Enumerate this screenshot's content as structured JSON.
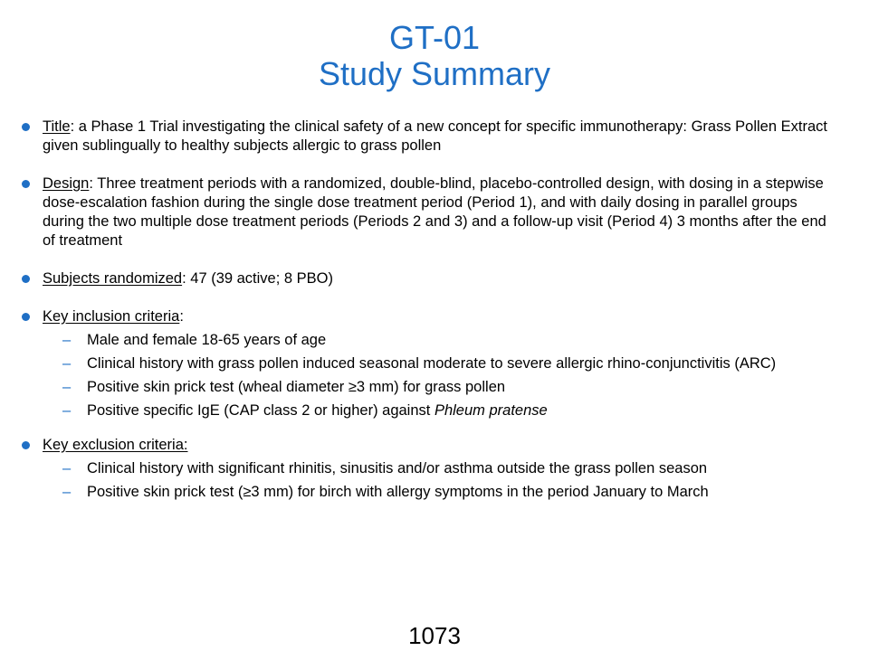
{
  "title": {
    "line1": "GT-01",
    "line2": "Study Summary"
  },
  "bullets": {
    "title": {
      "label": "Title",
      "text": ": a Phase 1 Trial investigating the clinical safety of a new concept for specific immunotherapy:  Grass Pollen Extract given sublingually  to healthy subjects allergic to grass pollen"
    },
    "design": {
      "label": "Design",
      "text": ": Three treatment periods with a randomized,  double-blind,  placebo-controlled design, with dosing in a stepwise dose-escalation fashion during  the single dose treatment period (Period 1), and with daily dosing in parallel groups during  the two multiple  dose treatment periods (Periods 2 and 3) and a follow-up visit (Period 4) 3 months  after the end of treatment"
    },
    "subjects": {
      "label": "Subjects randomized",
      "text": ":  47 (39 active; 8 PBO)"
    },
    "inclusion": {
      "label": "Key inclusion criteria",
      "text": ":",
      "items": [
        "Male and female 18-65 years of age",
        "Clinical history with grass pollen  induced  seasonal moderate  to severe allergic rhino-conjunctivitis (ARC)",
        "Positive skin prick test (wheal diameter ≥3 mm)  for grass pollen",
        "Positive specific IgE (CAP class 2 or higher)  against "
      ],
      "italic_term": "Phleum pratense"
    },
    "exclusion": {
      "label": "Key exclusion criteria:",
      "items": [
        "Clinical history with significant rhinitis, sinusitis and/or asthma outside the grass pollen  season",
        "Positive skin prick test (≥3 mm)  for birch with allergy symptoms  in the period January to March"
      ]
    }
  },
  "page_number": "1073",
  "colors": {
    "accent": "#1f6fc5",
    "text": "#000000",
    "background": "#ffffff"
  }
}
